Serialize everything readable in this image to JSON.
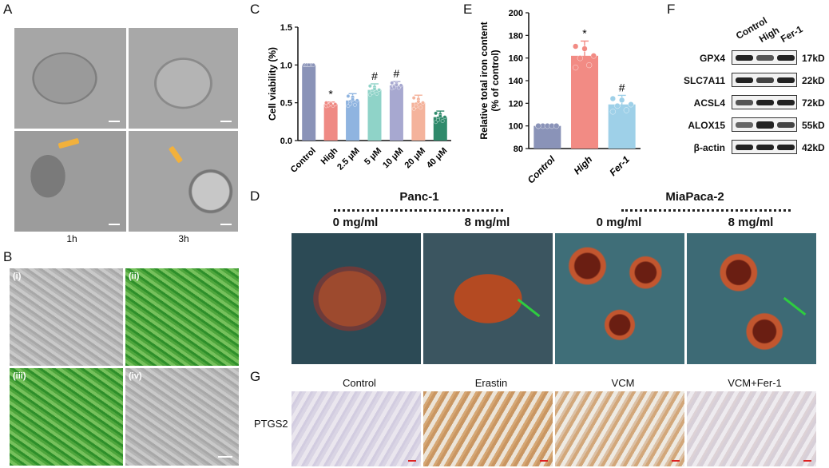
{
  "panels": {
    "a": "A",
    "b": "B",
    "c": "C",
    "d": "D",
    "e": "E",
    "f": "F",
    "g": "G"
  },
  "panel_a": {
    "time_labels": [
      "1h",
      "3h"
    ]
  },
  "panel_b": {
    "roman": [
      "(i)",
      "(ii)",
      "(iii)",
      "(iv)"
    ]
  },
  "panel_d": {
    "groups": [
      "Panc-1",
      "MiaPaca-2"
    ],
    "concentrations": [
      "0 mg/ml",
      "8 mg/ml",
      "0 mg/ml",
      "8 mg/ml"
    ]
  },
  "panel_f": {
    "conditions": [
      "Control",
      "High",
      "Fer-1"
    ],
    "proteins": [
      {
        "name": "GPX4",
        "kd": "17kD"
      },
      {
        "name": "SLC7A11",
        "kd": "22kD"
      },
      {
        "name": "ACSL4",
        "kd": "72kD"
      },
      {
        "name": "ALOX15",
        "kd": "55kD"
      },
      {
        "name": "β-actin",
        "kd": "42kD"
      }
    ]
  },
  "panel_g": {
    "conditions": [
      "Control",
      "Erastin",
      "VCM",
      "VCM+Fer-1"
    ],
    "row_label": "PTGS2"
  },
  "chart_data": [
    {
      "type": "bar",
      "panel": "C",
      "ylabel": "Cell viability (%)",
      "ylim": [
        0.0,
        1.5
      ],
      "yticks": [
        "0.0",
        "0.5",
        "1.0",
        "1.5"
      ],
      "categories": [
        "Control",
        "High",
        "2.5 μM",
        "5 μM",
        "10 μM",
        "20 μM",
        "40 μM"
      ],
      "values": [
        1.0,
        0.48,
        0.53,
        0.67,
        0.73,
        0.5,
        0.31
      ],
      "errors": [
        0.0,
        0.03,
        0.09,
        0.08,
        0.05,
        0.1,
        0.08
      ],
      "annotations": [
        "",
        "*",
        "",
        "#",
        "#",
        "",
        ""
      ],
      "colors": [
        "#8a93b8",
        "#ef8a84",
        "#8fb4e0",
        "#8fd3c8",
        "#a7a8d0",
        "#f4b39c",
        "#2f8a6b"
      ]
    },
    {
      "type": "bar",
      "panel": "E",
      "ylabel": "Relative total iron content (% of control)",
      "ylim": [
        80,
        200
      ],
      "yticks": [
        "80",
        "100",
        "120",
        "140",
        "160",
        "180",
        "200"
      ],
      "categories": [
        "Control",
        "High",
        "Fer-1"
      ],
      "values": [
        100,
        162,
        119
      ],
      "errors": [
        0,
        13,
        8
      ],
      "annotations": [
        "",
        "*",
        "#"
      ],
      "colors": [
        "#8a93b8",
        "#f28b84",
        "#9ed0e8"
      ]
    }
  ]
}
